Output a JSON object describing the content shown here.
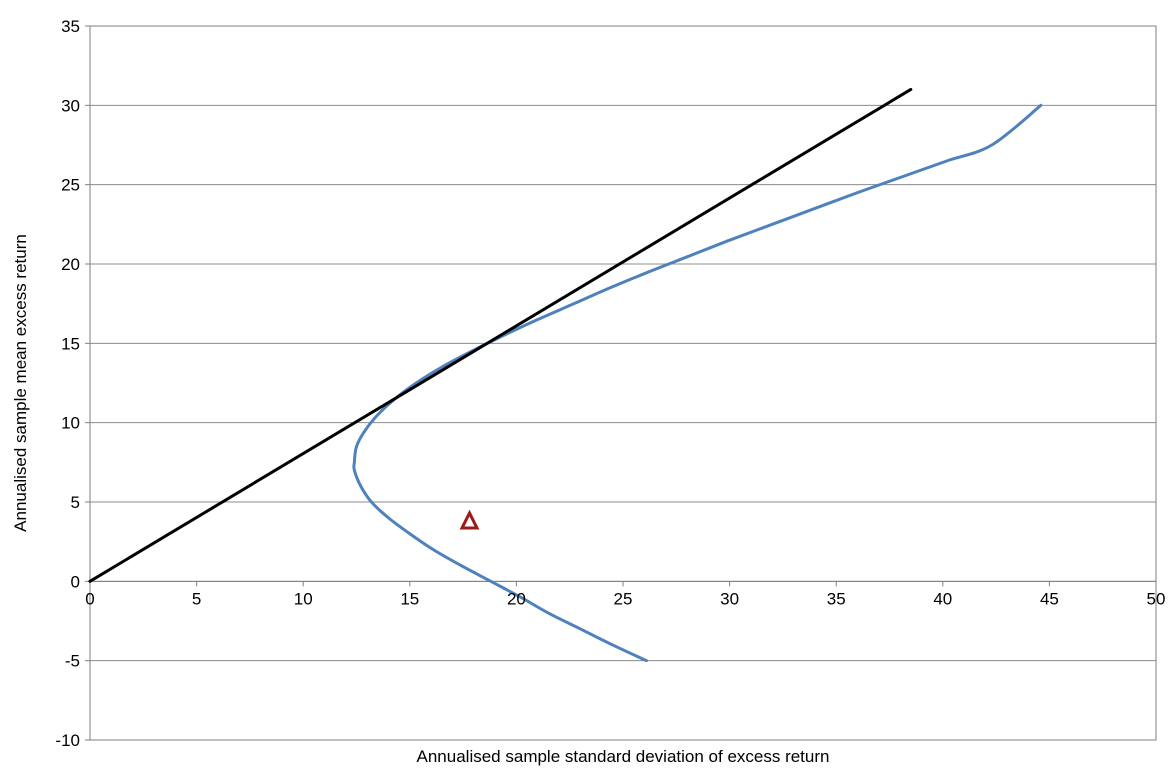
{
  "chart_data": {
    "type": "line",
    "title": "",
    "xlabel": "Annualised sample standard deviation of  excess return",
    "ylabel": "Annualised sample mean excess return",
    "xlim": [
      0,
      50
    ],
    "ylim": [
      -10,
      35
    ],
    "x_ticks": [
      0,
      5,
      10,
      15,
      20,
      25,
      30,
      35,
      40,
      45,
      50
    ],
    "y_ticks": [
      -10,
      -5,
      0,
      5,
      10,
      15,
      20,
      25,
      30,
      35
    ],
    "x_tick_labels": [
      "0",
      "5",
      "10",
      "15",
      "20",
      "25",
      "30",
      "35",
      "40",
      "45",
      "50"
    ],
    "y_tick_labels": [
      "-10",
      "-5",
      "0",
      "5",
      "10",
      "15",
      "20",
      "25",
      "30",
      "35"
    ],
    "grid": "horizontal",
    "legend": "none",
    "series": [
      {
        "kind": "curve",
        "color": "#4f81bd",
        "points": [
          [
            26.1,
            -5.0
          ],
          [
            24.5,
            -4.0
          ],
          [
            23.0,
            -3.0
          ],
          [
            21.5,
            -2.0
          ],
          [
            20.2,
            -1.0
          ],
          [
            18.8,
            0.0
          ],
          [
            17.4,
            1.0
          ],
          [
            16.1,
            2.0
          ],
          [
            15.0,
            3.0
          ],
          [
            14.0,
            4.0
          ],
          [
            13.2,
            5.0
          ],
          [
            12.7,
            6.0
          ],
          [
            12.4,
            7.0
          ],
          [
            12.4,
            7.5
          ],
          [
            12.5,
            8.5
          ],
          [
            12.9,
            9.5
          ],
          [
            13.5,
            10.5
          ],
          [
            14.3,
            11.5
          ],
          [
            15.3,
            12.5
          ],
          [
            16.5,
            13.5
          ],
          [
            17.9,
            14.5
          ],
          [
            19.4,
            15.5
          ],
          [
            21.0,
            16.5
          ],
          [
            22.7,
            17.5
          ],
          [
            24.4,
            18.5
          ],
          [
            26.2,
            19.5
          ],
          [
            28.1,
            20.5
          ],
          [
            30.0,
            21.5
          ],
          [
            32.0,
            22.5
          ],
          [
            34.0,
            23.5
          ],
          [
            36.0,
            24.5
          ],
          [
            38.1,
            25.5
          ],
          [
            40.2,
            26.5
          ],
          [
            42.3,
            27.5
          ],
          [
            44.6,
            30.0
          ]
        ]
      },
      {
        "kind": "tangent-line",
        "color": "#000000",
        "points": [
          [
            0,
            0
          ],
          [
            38.5,
            31.0
          ]
        ]
      },
      {
        "kind": "marker",
        "marker": "triangle-open",
        "color": "#9b1a1a",
        "points": [
          [
            17.8,
            3.8
          ]
        ]
      }
    ]
  }
}
